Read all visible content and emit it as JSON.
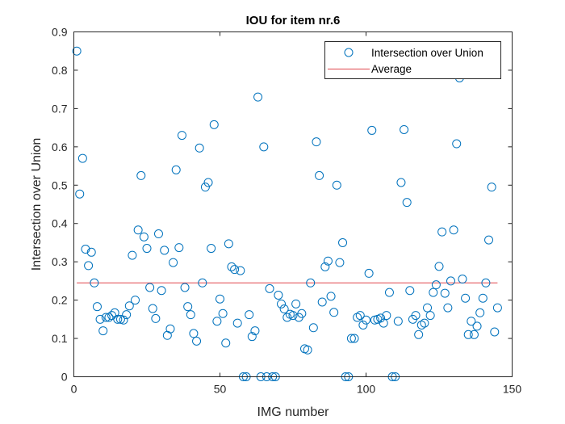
{
  "chart_data": {
    "type": "scatter",
    "title": "IOU for item nr.6",
    "xlabel": "IMG number",
    "ylabel": "Intersection over Union",
    "xlim": [
      0,
      150
    ],
    "ylim": [
      0,
      0.9
    ],
    "x_ticks": [
      0,
      50,
      100,
      150
    ],
    "y_ticks": [
      0,
      0.1,
      0.2,
      0.3,
      0.4,
      0.5,
      0.6,
      0.7,
      0.8,
      0.9
    ],
    "grid": false,
    "legend_position": "top-right",
    "colors": {
      "points": "#0072BD",
      "average": "#D95319",
      "average_line": "#e0464c",
      "axis": "#262626"
    },
    "series": [
      {
        "name": "Intersection over Union",
        "marker": "circle",
        "x": [
          1,
          2,
          3,
          4,
          5,
          6,
          7,
          8,
          9,
          10,
          11,
          12,
          13,
          14,
          15,
          16,
          17,
          18,
          19,
          20,
          21,
          22,
          23,
          24,
          25,
          26,
          27,
          28,
          29,
          30,
          31,
          32,
          33,
          34,
          35,
          36,
          37,
          38,
          39,
          40,
          41,
          42,
          43,
          44,
          45,
          46,
          47,
          48,
          49,
          50,
          51,
          52,
          53,
          54,
          55,
          56,
          57,
          58,
          59,
          60,
          61,
          62,
          63,
          64,
          65,
          66,
          67,
          68,
          69,
          70,
          71,
          72,
          73,
          74,
          75,
          76,
          77,
          78,
          79,
          80,
          81,
          82,
          83,
          84,
          85,
          86,
          87,
          88,
          89,
          90,
          91,
          92,
          93,
          94,
          95,
          96,
          97,
          98,
          99,
          100,
          101,
          102,
          103,
          104,
          105,
          106,
          107,
          108,
          109,
          110,
          111,
          112,
          113,
          114,
          115,
          116,
          117,
          118,
          119,
          120,
          121,
          122,
          123,
          124,
          125,
          126,
          127,
          128,
          129,
          130,
          131,
          132,
          133,
          134,
          135,
          136,
          137,
          138,
          139,
          140,
          141,
          142,
          143,
          144,
          145
        ],
        "y": [
          0.85,
          0.477,
          0.57,
          0.333,
          0.29,
          0.325,
          0.245,
          0.183,
          0.15,
          0.12,
          0.155,
          0.155,
          0.16,
          0.167,
          0.15,
          0.15,
          0.148,
          0.162,
          0.185,
          0.317,
          0.2,
          0.383,
          0.525,
          0.365,
          0.335,
          0.233,
          0.178,
          0.152,
          0.373,
          0.225,
          0.33,
          0.108,
          0.125,
          0.298,
          0.54,
          0.337,
          0.63,
          0.233,
          0.183,
          0.162,
          0.113,
          0.093,
          0.597,
          0.245,
          0.495,
          0.507,
          0.335,
          0.658,
          0.145,
          0.203,
          0.165,
          0.088,
          0.347,
          0.287,
          0.28,
          0.14,
          0.277,
          0.0,
          0.0,
          0.162,
          0.105,
          0.12,
          0.73,
          0.0,
          0.6,
          0.0,
          0.23,
          0.0,
          0.0,
          0.213,
          0.19,
          0.177,
          0.155,
          0.163,
          0.16,
          0.19,
          0.155,
          0.165,
          0.073,
          0.07,
          0.245,
          0.128,
          0.613,
          0.525,
          0.195,
          0.287,
          0.302,
          0.21,
          0.168,
          0.5,
          0.298,
          0.35,
          0.0,
          0.0,
          0.1,
          0.1,
          0.155,
          0.16,
          0.135,
          0.148,
          0.27,
          0.643,
          0.148,
          0.15,
          0.153,
          0.14,
          0.16,
          0.22,
          0.0,
          0.0,
          0.145,
          0.507,
          0.645,
          0.455,
          0.225,
          0.15,
          0.16,
          0.11,
          0.135,
          0.14,
          0.18,
          0.16,
          0.22,
          0.24,
          0.288,
          0.378,
          0.218,
          0.18,
          0.25,
          0.383,
          0.608,
          0.78,
          0.255,
          0.205,
          0.11,
          0.145,
          0.11,
          0.132,
          0.167,
          0.205,
          0.245,
          0.357,
          0.495,
          0.117,
          0.18
        ]
      },
      {
        "name": "Average",
        "type": "line",
        "x": [
          1,
          145
        ],
        "y": [
          0.245,
          0.245
        ]
      }
    ]
  }
}
